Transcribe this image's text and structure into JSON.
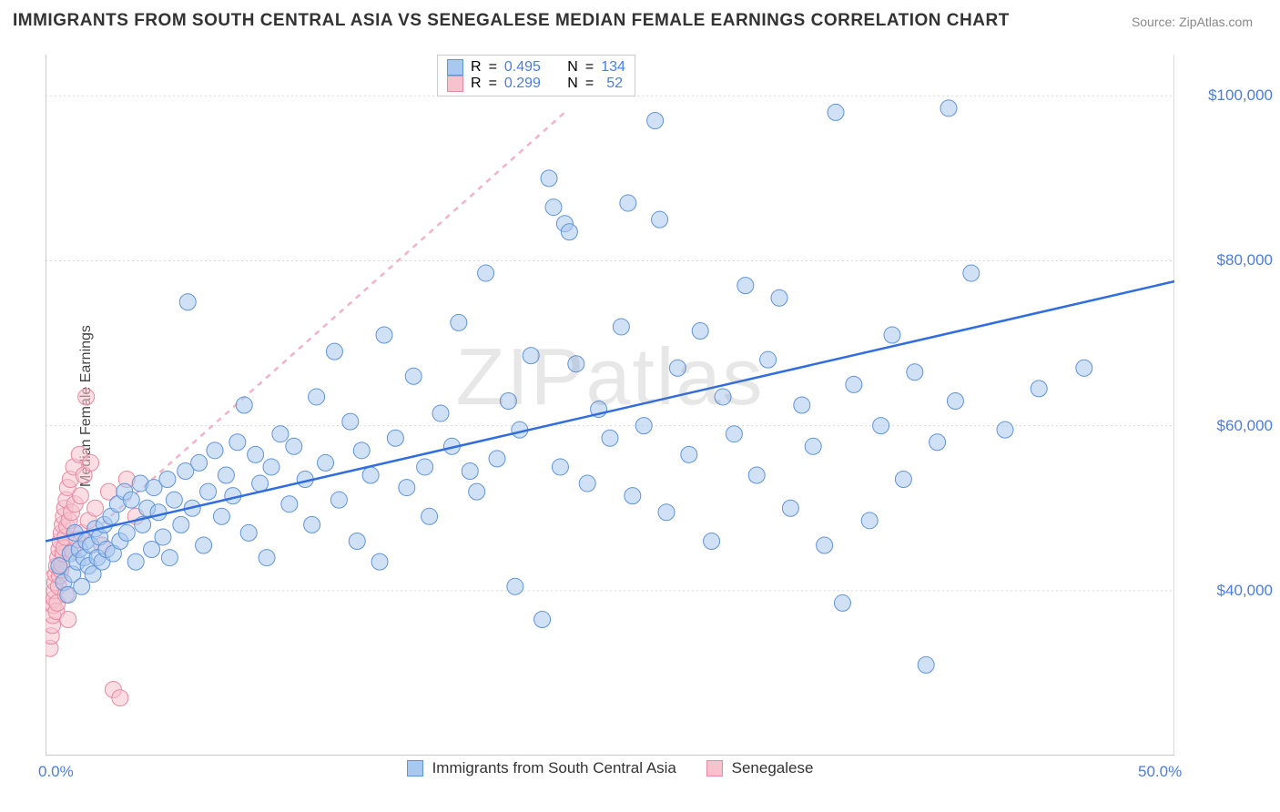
{
  "title": "IMMIGRANTS FROM SOUTH CENTRAL ASIA VS SENEGALESE MEDIAN FEMALE EARNINGS CORRELATION CHART",
  "source_label": "Source: ",
  "source_name": "ZipAtlas.com",
  "watermark": "ZIPatlas",
  "ylabel": "Median Female Earnings",
  "chart": {
    "type": "scatter",
    "xlim": [
      0,
      50
    ],
    "ylim": [
      20000,
      105000
    ],
    "x_ticks": [
      0,
      50
    ],
    "x_tick_labels": [
      "0.0%",
      "50.0%"
    ],
    "y_ticks": [
      40000,
      60000,
      80000,
      100000
    ],
    "y_tick_labels": [
      "$40,000",
      "$60,000",
      "$80,000",
      "$100,000"
    ],
    "grid_color": "#d9d9d9",
    "axis_color": "#bbbbbb",
    "background_color": "#ffffff",
    "marker_radius": 9,
    "marker_opacity": 0.55,
    "line_width": 2.5
  },
  "series_a": {
    "name": "Immigrants from South Central Asia",
    "fill": "#a9c8ef",
    "stroke": "#5f94da",
    "line_color": "#2f6de0",
    "R": "0.495",
    "N": "134",
    "trend": {
      "x1": 0,
      "y1": 46000,
      "x2": 50,
      "y2": 77500
    },
    "points": [
      [
        0.6,
        43000
      ],
      [
        0.8,
        41000
      ],
      [
        1.0,
        39500
      ],
      [
        1.1,
        44500
      ],
      [
        1.2,
        42000
      ],
      [
        1.3,
        47000
      ],
      [
        1.4,
        43500
      ],
      [
        1.5,
        45000
      ],
      [
        1.6,
        40500
      ],
      [
        1.7,
        44000
      ],
      [
        1.8,
        46000
      ],
      [
        1.9,
        43000
      ],
      [
        2.0,
        45500
      ],
      [
        2.1,
        42000
      ],
      [
        2.2,
        47500
      ],
      [
        2.3,
        44000
      ],
      [
        2.4,
        46500
      ],
      [
        2.5,
        43500
      ],
      [
        2.6,
        48000
      ],
      [
        2.7,
        45000
      ],
      [
        2.9,
        49000
      ],
      [
        3.0,
        44500
      ],
      [
        3.2,
        50500
      ],
      [
        3.3,
        46000
      ],
      [
        3.5,
        52000
      ],
      [
        3.6,
        47000
      ],
      [
        3.8,
        51000
      ],
      [
        4.0,
        43500
      ],
      [
        4.2,
        53000
      ],
      [
        4.3,
        48000
      ],
      [
        4.5,
        50000
      ],
      [
        4.7,
        45000
      ],
      [
        4.8,
        52500
      ],
      [
        5.0,
        49500
      ],
      [
        5.2,
        46500
      ],
      [
        5.4,
        53500
      ],
      [
        5.5,
        44000
      ],
      [
        5.7,
        51000
      ],
      [
        6.0,
        48000
      ],
      [
        6.2,
        54500
      ],
      [
        6.3,
        75000
      ],
      [
        6.5,
        50000
      ],
      [
        6.8,
        55500
      ],
      [
        7.0,
        45500
      ],
      [
        7.2,
        52000
      ],
      [
        7.5,
        57000
      ],
      [
        7.8,
        49000
      ],
      [
        8.0,
        54000
      ],
      [
        8.3,
        51500
      ],
      [
        8.5,
        58000
      ],
      [
        8.8,
        62500
      ],
      [
        9.0,
        47000
      ],
      [
        9.3,
        56500
      ],
      [
        9.5,
        53000
      ],
      [
        9.8,
        44000
      ],
      [
        10.0,
        55000
      ],
      [
        10.4,
        59000
      ],
      [
        10.8,
        50500
      ],
      [
        11.0,
        57500
      ],
      [
        11.5,
        53500
      ],
      [
        11.8,
        48000
      ],
      [
        12.0,
        63500
      ],
      [
        12.4,
        55500
      ],
      [
        12.8,
        69000
      ],
      [
        13.0,
        51000
      ],
      [
        13.5,
        60500
      ],
      [
        13.8,
        46000
      ],
      [
        14.0,
        57000
      ],
      [
        14.4,
        54000
      ],
      [
        14.8,
        43500
      ],
      [
        15.0,
        71000
      ],
      [
        15.5,
        58500
      ],
      [
        16.0,
        52500
      ],
      [
        16.3,
        66000
      ],
      [
        16.8,
        55000
      ],
      [
        17.0,
        49000
      ],
      [
        17.5,
        61500
      ],
      [
        18.0,
        57500
      ],
      [
        18.3,
        72500
      ],
      [
        18.8,
        54500
      ],
      [
        19.1,
        52000
      ],
      [
        19.5,
        78500
      ],
      [
        20.0,
        56000
      ],
      [
        20.5,
        63000
      ],
      [
        20.8,
        40500
      ],
      [
        21.0,
        59500
      ],
      [
        21.5,
        68500
      ],
      [
        22.0,
        36500
      ],
      [
        22.3,
        90000
      ],
      [
        22.5,
        86500
      ],
      [
        22.8,
        55000
      ],
      [
        23.0,
        84500
      ],
      [
        23.2,
        83500
      ],
      [
        23.5,
        67500
      ],
      [
        24.0,
        53000
      ],
      [
        24.5,
        62000
      ],
      [
        25.0,
        58500
      ],
      [
        25.5,
        72000
      ],
      [
        25.8,
        87000
      ],
      [
        26.0,
        51500
      ],
      [
        26.5,
        60000
      ],
      [
        27.0,
        97000
      ],
      [
        27.2,
        85000
      ],
      [
        27.5,
        49500
      ],
      [
        28.0,
        67000
      ],
      [
        28.5,
        56500
      ],
      [
        29.0,
        71500
      ],
      [
        29.5,
        46000
      ],
      [
        30.0,
        63500
      ],
      [
        30.5,
        59000
      ],
      [
        31.0,
        77000
      ],
      [
        31.5,
        54000
      ],
      [
        32.0,
        68000
      ],
      [
        32.5,
        75500
      ],
      [
        33.0,
        50000
      ],
      [
        33.5,
        62500
      ],
      [
        34.0,
        57500
      ],
      [
        34.5,
        45500
      ],
      [
        35.0,
        98000
      ],
      [
        35.3,
        38500
      ],
      [
        35.8,
        65000
      ],
      [
        36.5,
        48500
      ],
      [
        37.0,
        60000
      ],
      [
        37.5,
        71000
      ],
      [
        38.0,
        53500
      ],
      [
        38.5,
        66500
      ],
      [
        39.0,
        31000
      ],
      [
        39.5,
        58000
      ],
      [
        40.0,
        98500
      ],
      [
        40.3,
        63000
      ],
      [
        41.0,
        78500
      ],
      [
        42.5,
        59500
      ],
      [
        44.0,
        64500
      ],
      [
        46.0,
        67000
      ]
    ]
  },
  "series_b": {
    "name": "Senegalese",
    "fill": "#f6c2ce",
    "stroke": "#e88aa2",
    "line_color": "#f4b3c4",
    "R": "0.299",
    "N": "52",
    "trend": {
      "x1": 0,
      "y1": 42000,
      "x2": 23,
      "y2": 98000,
      "dash": "6 6"
    },
    "points": [
      [
        0.2,
        33000
      ],
      [
        0.25,
        34500
      ],
      [
        0.3,
        35800
      ],
      [
        0.32,
        37000
      ],
      [
        0.35,
        38200
      ],
      [
        0.38,
        39000
      ],
      [
        0.4,
        40000
      ],
      [
        0.42,
        41000
      ],
      [
        0.45,
        42000
      ],
      [
        0.48,
        37500
      ],
      [
        0.5,
        43000
      ],
      [
        0.52,
        38500
      ],
      [
        0.55,
        44000
      ],
      [
        0.58,
        40500
      ],
      [
        0.6,
        45000
      ],
      [
        0.62,
        41800
      ],
      [
        0.65,
        46000
      ],
      [
        0.68,
        42500
      ],
      [
        0.7,
        47000
      ],
      [
        0.72,
        43200
      ],
      [
        0.75,
        48000
      ],
      [
        0.78,
        44500
      ],
      [
        0.8,
        49000
      ],
      [
        0.82,
        45200
      ],
      [
        0.85,
        50000
      ],
      [
        0.88,
        46500
      ],
      [
        0.9,
        39500
      ],
      [
        0.92,
        51000
      ],
      [
        0.95,
        47800
      ],
      [
        0.98,
        52500
      ],
      [
        1.0,
        36500
      ],
      [
        1.05,
        48500
      ],
      [
        1.1,
        53500
      ],
      [
        1.15,
        49500
      ],
      [
        1.2,
        44800
      ],
      [
        1.25,
        55000
      ],
      [
        1.3,
        50500
      ],
      [
        1.4,
        46200
      ],
      [
        1.5,
        56500
      ],
      [
        1.55,
        51500
      ],
      [
        1.6,
        47000
      ],
      [
        1.7,
        54000
      ],
      [
        1.8,
        63500
      ],
      [
        1.9,
        48500
      ],
      [
        2.0,
        55500
      ],
      [
        2.2,
        50000
      ],
      [
        2.5,
        45500
      ],
      [
        2.8,
        52000
      ],
      [
        3.0,
        28000
      ],
      [
        3.3,
        27000
      ],
      [
        3.6,
        53500
      ],
      [
        4.0,
        49000
      ]
    ]
  },
  "legend_top": {
    "border_color": "#cccccc",
    "bg": "#ffffff",
    "text_color": "#444444",
    "label_R": "R",
    "label_N": "N",
    "eq": "="
  },
  "legend_bottom": [
    {
      "name": "Immigrants from South Central Asia",
      "sw_fill": "#a9c8ef",
      "sw_stroke": "#5f94da"
    },
    {
      "name": "Senegalese",
      "sw_fill": "#f6c2ce",
      "sw_stroke": "#e88aa2"
    }
  ]
}
